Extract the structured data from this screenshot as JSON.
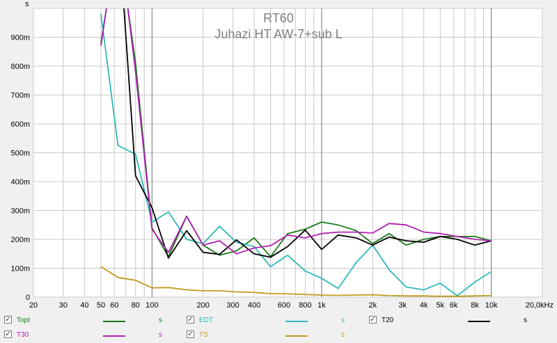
{
  "chart_data": {
    "type": "line",
    "title": "RT60",
    "subtitle": "Juhazi HT AW-7+sub L",
    "ylabel": "s",
    "x_scale": "log",
    "xlim": [
      20,
      20000
    ],
    "ylim": [
      0,
      1.0
    ],
    "grid": true,
    "legend_placement": "bottom",
    "x_ticks": [
      {
        "v": 20,
        "label": "20"
      },
      {
        "v": 30,
        "label": "30"
      },
      {
        "v": 40,
        "label": "40"
      },
      {
        "v": 50,
        "label": "50"
      },
      {
        "v": 60,
        "label": "60"
      },
      {
        "v": 80,
        "label": "80"
      },
      {
        "v": 100,
        "label": "100"
      },
      {
        "v": 200,
        "label": "200"
      },
      {
        "v": 300,
        "label": "300"
      },
      {
        "v": 400,
        "label": "400"
      },
      {
        "v": 600,
        "label": "600"
      },
      {
        "v": 800,
        "label": "800"
      },
      {
        "v": 1000,
        "label": "1k"
      },
      {
        "v": 2000,
        "label": "2k"
      },
      {
        "v": 3000,
        "label": "3k"
      },
      {
        "v": 4000,
        "label": "4k"
      },
      {
        "v": 5000,
        "label": "5k"
      },
      {
        "v": 6000,
        "label": "6k"
      },
      {
        "v": 8000,
        "label": "8k"
      },
      {
        "v": 10000,
        "label": "10k"
      },
      {
        "v": 20000,
        "label": "20,0kHz"
      }
    ],
    "y_ticks": [
      {
        "v": 0,
        "label": "0"
      },
      {
        "v": 0.1,
        "label": "100m"
      },
      {
        "v": 0.2,
        "label": "200m"
      },
      {
        "v": 0.3,
        "label": "300m"
      },
      {
        "v": 0.4,
        "label": "400m"
      },
      {
        "v": 0.5,
        "label": "500m"
      },
      {
        "v": 0.6,
        "label": "600m"
      },
      {
        "v": 0.7,
        "label": "700m"
      },
      {
        "v": 0.8,
        "label": "800m"
      },
      {
        "v": 0.9,
        "label": "900m"
      }
    ],
    "x": [
      50,
      63,
      80,
      100,
      125,
      160,
      200,
      250,
      315,
      400,
      500,
      630,
      800,
      1000,
      1250,
      1600,
      2000,
      2500,
      3150,
      4000,
      5000,
      6300,
      8000,
      10000
    ],
    "series": [
      {
        "name": "Topt",
        "color": "#1a7a1a",
        "unit": "s",
        "values": [
          0.88,
          1.25,
          0.81,
          0.24,
          0.14,
          0.28,
          0.18,
          0.145,
          0.16,
          0.205,
          0.14,
          0.22,
          0.235,
          0.26,
          0.25,
          0.23,
          0.185,
          0.22,
          0.18,
          0.2,
          0.21,
          0.21,
          0.21,
          0.195
        ]
      },
      {
        "name": "EDT",
        "color": "#2fb8b8",
        "unit": "s",
        "values": [
          0.98,
          0.525,
          0.495,
          0.26,
          0.295,
          0.2,
          0.185,
          0.245,
          0.19,
          0.175,
          0.105,
          0.145,
          0.09,
          0.065,
          0.03,
          0.12,
          0.18,
          0.095,
          0.035,
          0.025,
          0.048,
          0.005,
          0.052,
          0.088
        ]
      },
      {
        "name": "T20",
        "color": "#000000",
        "unit": "s",
        "values": [
          null,
          1.3,
          0.42,
          0.31,
          0.135,
          0.23,
          0.155,
          0.148,
          0.198,
          0.15,
          0.138,
          0.175,
          0.232,
          0.165,
          0.215,
          0.205,
          0.18,
          0.208,
          0.195,
          0.19,
          0.21,
          0.2,
          0.18,
          0.195
        ]
      },
      {
        "name": "T30",
        "color": "#b020b0",
        "unit": "s",
        "values": [
          0.87,
          1.28,
          0.78,
          0.235,
          0.155,
          0.28,
          0.18,
          0.195,
          0.15,
          0.17,
          0.178,
          0.215,
          0.205,
          0.22,
          0.225,
          0.225,
          0.222,
          0.255,
          0.25,
          0.225,
          0.22,
          0.21,
          0.2,
          0.195
        ]
      },
      {
        "name": "TS",
        "color": "#c09a20",
        "unit": "s",
        "values": [
          0.105,
          0.068,
          0.058,
          0.032,
          0.033,
          0.025,
          0.022,
          0.022,
          0.018,
          0.016,
          0.012,
          0.011,
          0.009,
          0.007,
          0.006,
          0.007,
          0.008,
          0.005,
          0.004,
          0.004,
          0.003,
          0.003,
          0.004,
          0.005
        ]
      }
    ]
  }
}
